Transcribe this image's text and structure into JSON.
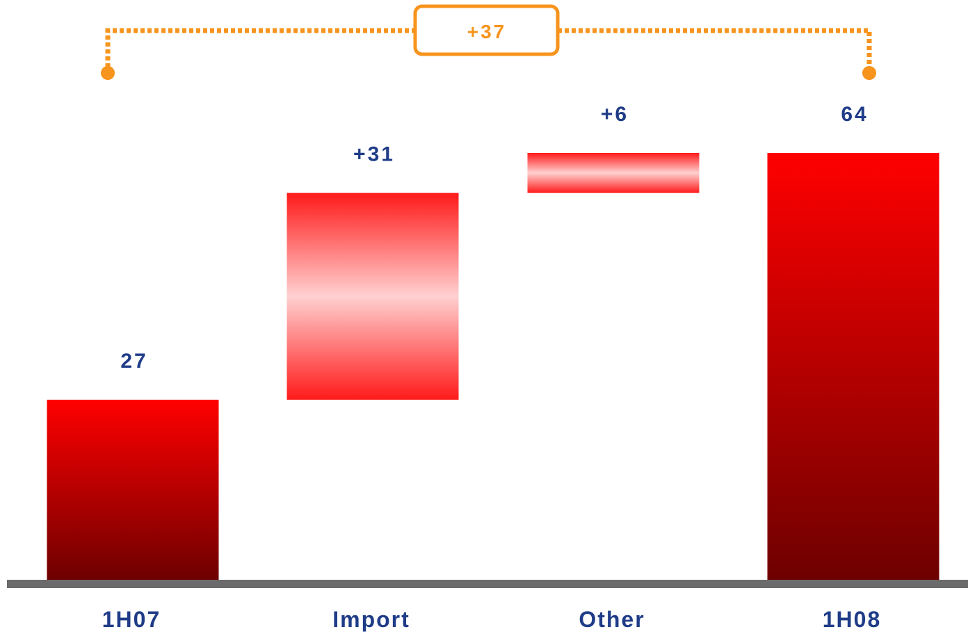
{
  "chart_data": {
    "type": "bar",
    "subtype": "waterfall",
    "categories": [
      "1H07",
      "Import",
      "Other",
      "1H08"
    ],
    "values": [
      27,
      31,
      6,
      64
    ],
    "bar_kinds": [
      "total",
      "delta",
      "delta",
      "total"
    ],
    "data_labels": [
      "27",
      "+31",
      "+6",
      "64"
    ],
    "title": "",
    "xlabel": "",
    "ylabel": "",
    "ylim": [
      0,
      64
    ],
    "grid": false,
    "bracket": {
      "from": "1H07",
      "to": "1H08",
      "label": "+37"
    }
  },
  "colors": {
    "label_text": "#1f3c88",
    "bracket": "#f7941d",
    "baseline": "#6b6b6b",
    "bar_top": "#ff0000",
    "bar_bottom": "#6e0000",
    "delta_edge": "#ff1a1a",
    "delta_mid": "#ffd0d0"
  }
}
